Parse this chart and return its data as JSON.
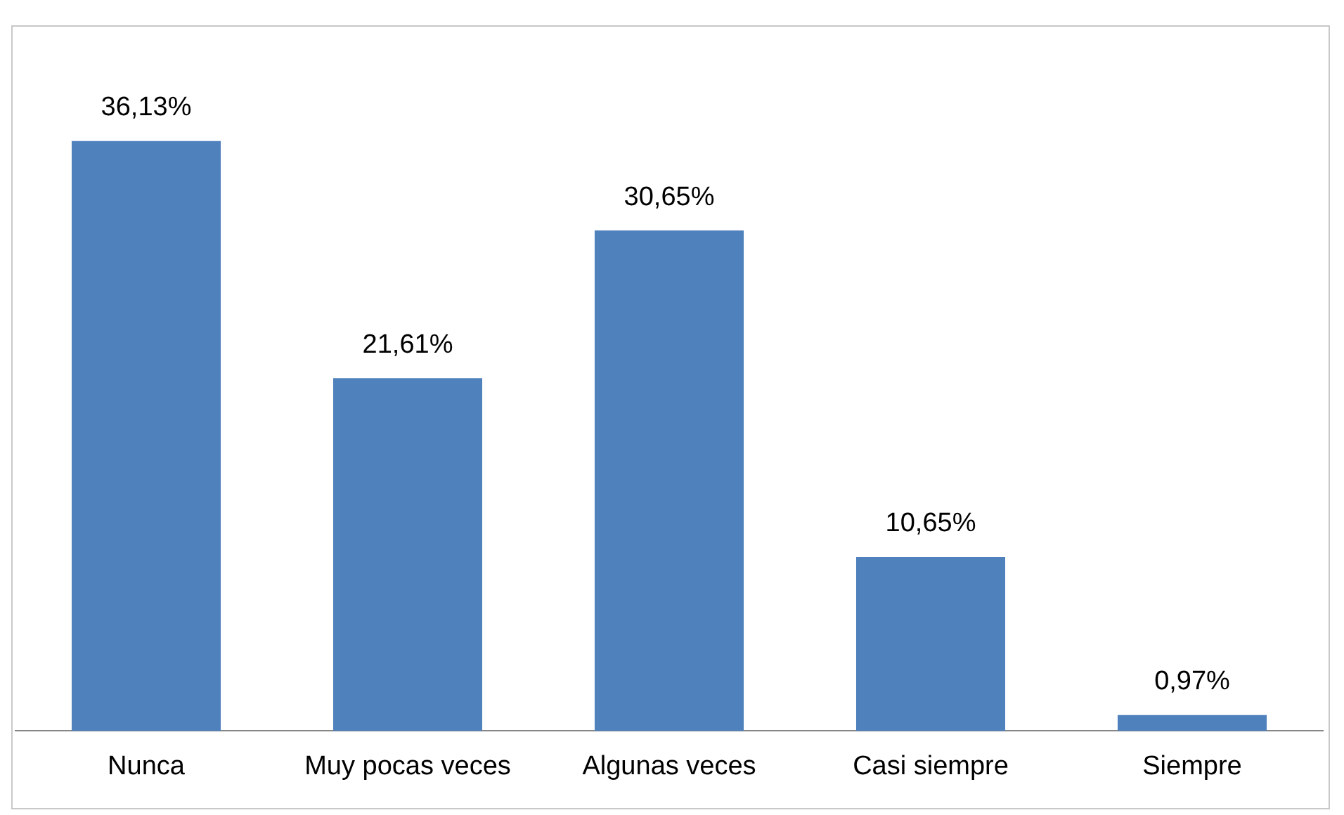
{
  "chart_data": {
    "type": "bar",
    "categories": [
      "Nunca",
      "Muy pocas veces",
      "Algunas veces",
      "Casi siempre",
      "Siempre"
    ],
    "values": [
      36.13,
      21.61,
      30.65,
      10.65,
      0.97
    ],
    "value_labels": [
      "36,13%",
      "21,61%",
      "30,65%",
      "10,65%",
      "0,97%"
    ],
    "color": "#4f81bd",
    "grid": false,
    "legend": false
  }
}
